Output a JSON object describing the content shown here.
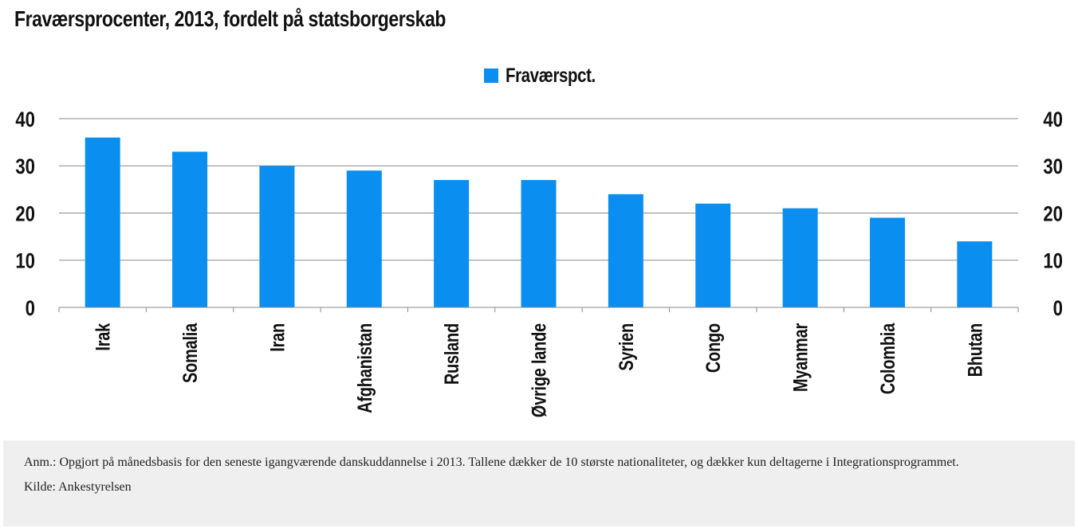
{
  "header": {
    "title": "Fraværsprocenter, 2013, fordelt på statsborgerskab"
  },
  "chart_data": {
    "type": "bar",
    "title": "Fraværsprocenter, 2013, fordelt på statsborgerskab",
    "categories": [
      "Irak",
      "Somalia",
      "Iran",
      "Afghanistan",
      "Rusland",
      "Øvrige lande",
      "Syrien",
      "Congo",
      "Myanmar",
      "Colombia",
      "Bhutan"
    ],
    "series": [
      {
        "name": "Fraværspct.",
        "values": [
          36,
          33,
          30,
          29,
          27,
          27,
          24,
          22,
          21,
          19,
          14
        ],
        "color": "#0a8ff0"
      }
    ],
    "ylim": [
      0,
      40
    ],
    "yticks": [
      "0",
      "10",
      "20",
      "30",
      "40"
    ],
    "xlabel": "",
    "ylabel": "",
    "grid": true,
    "dual_y_axis": true,
    "legend_position": "top-center"
  },
  "footer": {
    "note": "Anm.: Opgjort på månedsbasis for den seneste igangværende danskuddannelse i 2013. Tallene dækker de 10 største nationaliteter, og dækker kun deltagerne i Integrationsprogrammet.",
    "source": "Kilde: Ankestyrelsen"
  }
}
